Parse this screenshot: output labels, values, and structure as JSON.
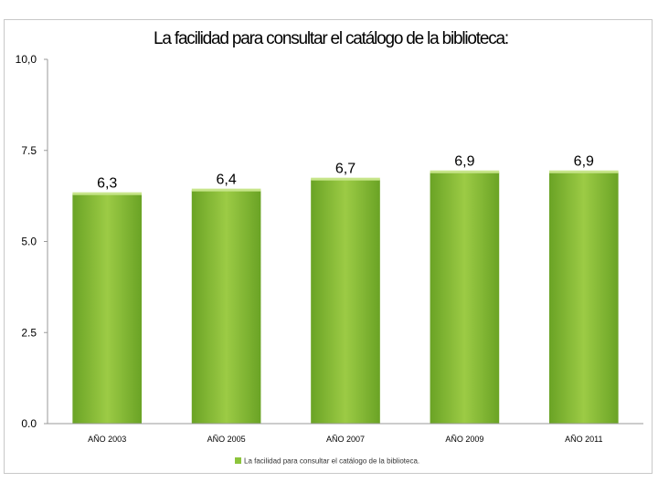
{
  "chart_data": {
    "type": "bar",
    "title": "La facilidad para consultar el catálogo de la biblioteca:",
    "categories": [
      "AÑO 2003",
      "AÑO 2005",
      "AÑO 2007",
      "AÑO 2009",
      "AÑO 2011"
    ],
    "series": [
      {
        "name": "La facilidad para consultar el catálogo de la biblioteca.",
        "values": [
          6.3,
          6.4,
          6.7,
          6.9,
          6.9
        ],
        "labels": [
          "6,3",
          "6,4",
          "6,7",
          "6,9",
          "6,9"
        ],
        "color": "#7fb72f"
      }
    ],
    "ylim": [
      0,
      10
    ],
    "yticks": [
      0,
      2.5,
      5,
      7.5,
      10
    ],
    "ytick_labels": [
      "0.0",
      "2.5",
      "5.0",
      "7.5",
      "10,0"
    ],
    "grid": false,
    "legend": "bottom"
  }
}
